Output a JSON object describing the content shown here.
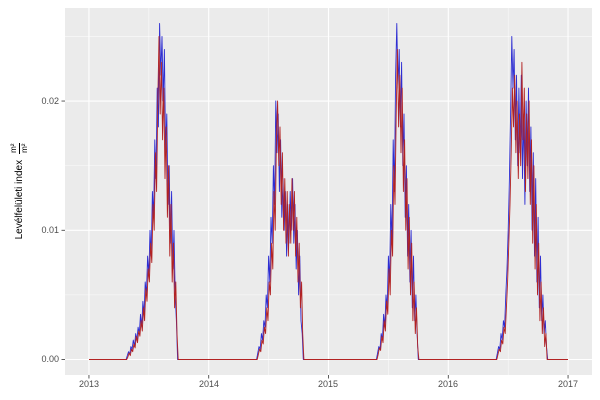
{
  "figure": {
    "background": "#ffffff",
    "panel_background": "#ebebeb",
    "grid_major_color": "#ffffff",
    "grid_minor_color": "#ffffff",
    "tick_mark_color": "#333333",
    "tick_label_color": "#4d4d4d"
  },
  "axis": {
    "y_title_text": "Levélfelületi index",
    "y_title_frac_num": "m²",
    "y_title_frac_den": "m²",
    "x_tick_labels": [
      "2013",
      "2014",
      "2015",
      "2016",
      "2017"
    ],
    "y_tick_labels": [
      "0.00",
      "0.01",
      "0.02"
    ]
  },
  "chart_data": {
    "type": "line",
    "title": "",
    "xlabel": "",
    "ylabel": "Levélfelületi index m²/m²",
    "legend": "none",
    "grid": true,
    "xlim": [
      2012.8,
      2017.2
    ],
    "ylim": [
      -0.0012,
      0.0272
    ],
    "x_ticks": [
      2013,
      2014,
      2015,
      2016,
      2017
    ],
    "x_minor_ticks": [
      2013.5,
      2014.5,
      2015.5,
      2016.5
    ],
    "y_ticks": [
      0,
      0.01,
      0.02
    ],
    "y_minor_ticks": [
      0.005,
      0.015,
      0.025
    ],
    "y_scale": 0.001,
    "series": [
      {
        "name": "blue",
        "color": "#2d2dd2",
        "segments": [
          {
            "x0": 2013.0,
            "dx": 1,
            "y": [
              0
            ]
          },
          {
            "x0": 2013.31,
            "dx": 0.01,
            "y": [
              0,
              0.3,
              0.6,
              0.4,
              1,
              0.8,
              1.5,
              1,
              2,
              1.5,
              2.5,
              2,
              3.5,
              2.5,
              4.5,
              3.5,
              6,
              5,
              8,
              6.5,
              10,
              8,
              13,
              11,
              17,
              14,
              21,
              18,
              26,
              22,
              25,
              20,
              24,
              16,
              19,
              12,
              15,
              9,
              13,
              7,
              10,
              5,
              3,
              0
            ]
          },
          {
            "x0": 2014.4,
            "dx": 0.01,
            "y": [
              0,
              0.5,
              1,
              0.8,
              2,
              1.5,
              3,
              2.5,
              5,
              4,
              8,
              6,
              11,
              9,
              15,
              12,
              20,
              16,
              19,
              13,
              17,
              11,
              14,
              10,
              13,
              8,
              12,
              9,
              13,
              10,
              14,
              9,
              12,
              7,
              10,
              5,
              8,
              3,
              2,
              0
            ]
          },
          {
            "x0": 2015.4,
            "dx": 0.01,
            "y": [
              0,
              0.5,
              1,
              0.8,
              2,
              1.5,
              3.5,
              2.5,
              5,
              4,
              8,
              6,
              12,
              9,
              17,
              13,
              22,
              26,
              21,
              24,
              18,
              23,
              15,
              19,
              11,
              15,
              8,
              12,
              6,
              10,
              4,
              8,
              3,
              5,
              2,
              0
            ]
          },
          {
            "x0": 2016.4,
            "dx": 0.01,
            "y": [
              0,
              0.5,
              1,
              0.8,
              2,
              1.5,
              3,
              2.5,
              5,
              7,
              10,
              14,
              19,
              25,
              21,
              24,
              17,
              22,
              15,
              21,
              16,
              22,
              14,
              19,
              12,
              20,
              15,
              21,
              13,
              18,
              10,
              16,
              8,
              14,
              6,
              11,
              4,
              8,
              3,
              5,
              2,
              3,
              1,
              0
            ]
          },
          {
            "x0": 2017.0,
            "dx": 1,
            "y": [
              0
            ]
          }
        ]
      },
      {
        "name": "red",
        "color": "#b22222",
        "segments": [
          {
            "x0": 2013.0,
            "dx": 1,
            "y": [
              0
            ]
          },
          {
            "x0": 2013.315,
            "dx": 0.01,
            "y": [
              0,
              0.2,
              0.5,
              0.3,
              0.8,
              0.6,
              1.2,
              0.9,
              1.8,
              1.3,
              2.2,
              1.8,
              3,
              2.2,
              4,
              3,
              5.5,
              4.5,
              7,
              6,
              9,
              7.5,
              12,
              10,
              16,
              13,
              20,
              25,
              19,
              23,
              17,
              21,
              14,
              18,
              11,
              15,
              8,
              12,
              6,
              9,
              4,
              6,
              2,
              0
            ]
          },
          {
            "x0": 2014.405,
            "dx": 0.01,
            "y": [
              0,
              0.4,
              0.8,
              0.6,
              1.5,
              1.2,
              2.5,
              2,
              4,
              3,
              6,
              5,
              9,
              7,
              13,
              10,
              17,
              20,
              15,
              18,
              12,
              16,
              10,
              14,
              9,
              13,
              8,
              12,
              9,
              14,
              10,
              13,
              8,
              11,
              6,
              9,
              4,
              6,
              2,
              0
            ]
          },
          {
            "x0": 2015.405,
            "dx": 0.01,
            "y": [
              0,
              0.4,
              0.9,
              0.7,
              1.8,
              1.3,
              3,
              2.2,
              4.5,
              3.5,
              7,
              5,
              10,
              8,
              15,
              12,
              19,
              24,
              18,
              22,
              16,
              21,
              13,
              17,
              10,
              14,
              7,
              11,
              5,
              9,
              3,
              6,
              2,
              4,
              1,
              0
            ]
          },
          {
            "x0": 2016.405,
            "dx": 0.01,
            "y": [
              0,
              0.4,
              0.8,
              0.6,
              1.5,
              1.2,
              2.5,
              2,
              4,
              6,
              9,
              12,
              16,
              21,
              18,
              22,
              16,
              20,
              14,
              19,
              15,
              23,
              17,
              21,
              13,
              19,
              14,
              20,
              12,
              17,
              9,
              15,
              7,
              12,
              5,
              9,
              3,
              6,
              2,
              4,
              1,
              2,
              0
            ]
          },
          {
            "x0": 2017.0,
            "dx": 1,
            "y": [
              0
            ]
          }
        ]
      }
    ]
  }
}
